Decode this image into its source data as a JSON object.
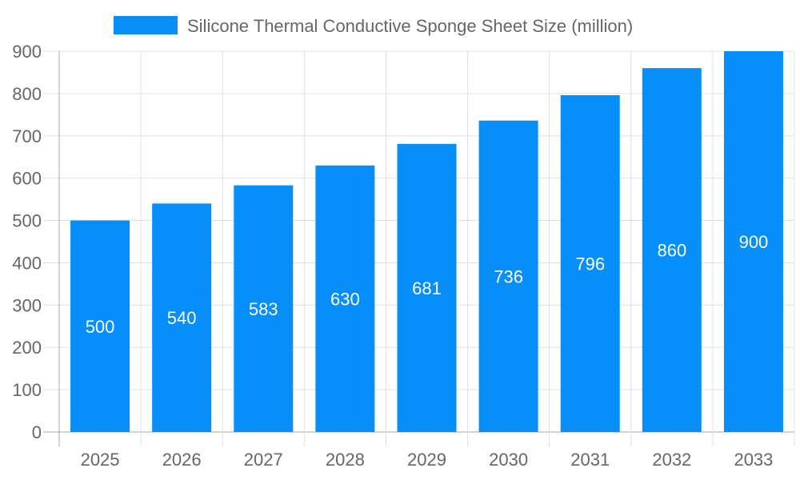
{
  "chart_data": {
    "type": "bar",
    "title": "",
    "xlabel": "",
    "ylabel": "",
    "categories": [
      "2025",
      "2026",
      "2027",
      "2028",
      "2029",
      "2030",
      "2031",
      "2032",
      "2033"
    ],
    "series": [
      {
        "name": "Silicone Thermal Conductive Sponge Sheet Size (million)",
        "values": [
          500,
          540,
          583,
          630,
          681,
          736,
          796,
          860,
          900
        ],
        "color": "#068efb"
      }
    ],
    "ylim": [
      0,
      900
    ],
    "yticks": [
      0,
      100,
      200,
      300,
      400,
      500,
      600,
      700,
      800,
      900
    ],
    "grid": true,
    "legend": "top-center",
    "data_labels": true
  }
}
